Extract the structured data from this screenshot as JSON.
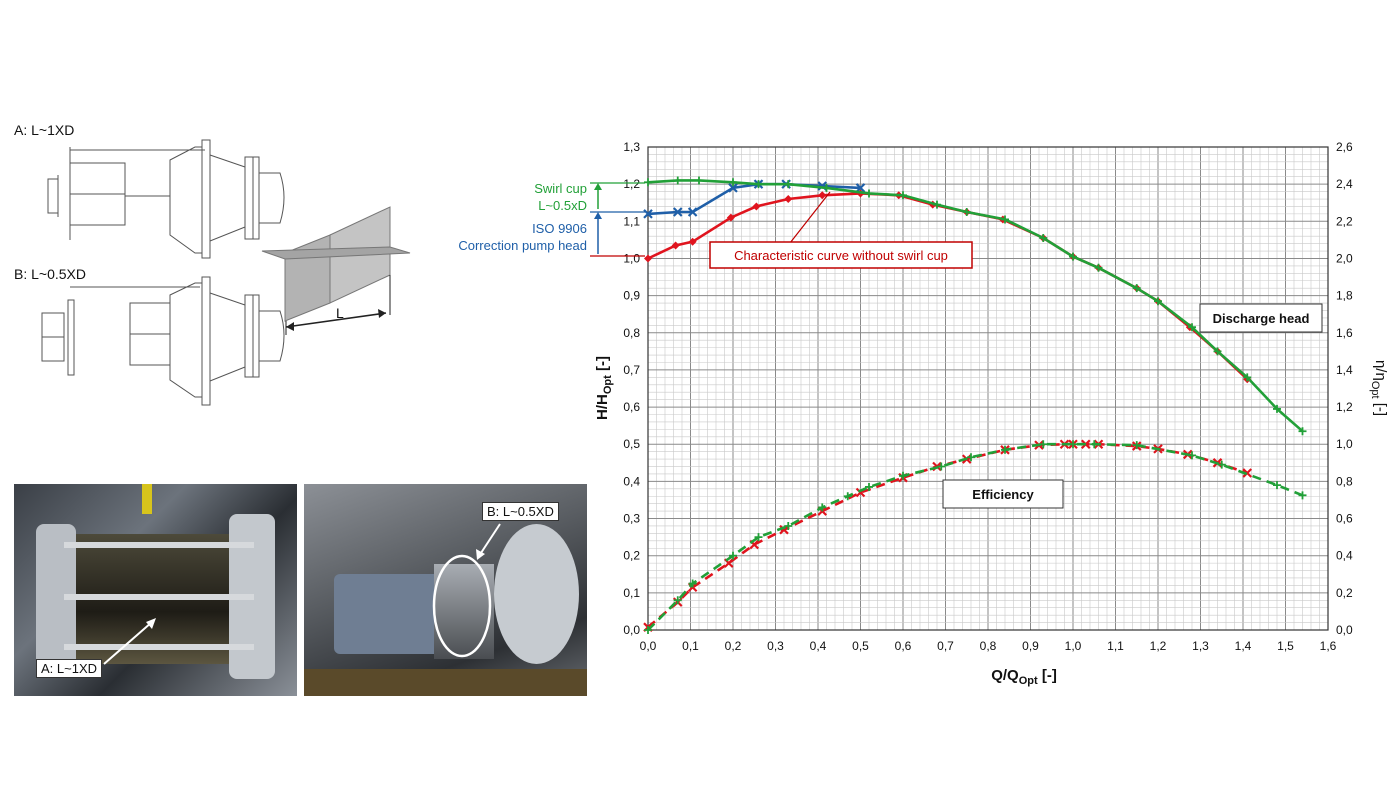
{
  "drawings": {
    "label_a": "A: L~1XD",
    "label_b": "B: L~0.5XD",
    "dim_label": "L"
  },
  "photos": {
    "left_tag": "A: L~1XD",
    "right_tag": "B: L~0.5XD"
  },
  "annotations": {
    "swirl_cup_line1": "Swirl cup",
    "swirl_cup_line2": "L~0.5xD",
    "iso_line1": "ISO 9906",
    "iso_line2": "Correction pump head",
    "without_swirl": "Characteristic curve without swirl cup",
    "discharge_head": "Discharge head",
    "efficiency": "Efficiency"
  },
  "colors": {
    "red": "#e0141e",
    "blue": "#1f5fa8",
    "green": "#22a038",
    "dark_red": "#c00000"
  },
  "chart_data": {
    "type": "line",
    "xlabel": "Q/Q",
    "xlabel_sub": "Opt",
    "xlabel_suffix": " [-]",
    "ylabel": "H/H",
    "ylabel_sub": "Opt",
    "ylabel_suffix": " [-]",
    "y2label": "η/η",
    "y2label_sub": "Opt",
    "y2label_suffix": " [-]",
    "xlim": [
      0,
      1.6
    ],
    "ylim": [
      0,
      1.3
    ],
    "y2lim": [
      0,
      2.6
    ],
    "x_ticks": [
      "0,0",
      "0,1",
      "0,2",
      "0,3",
      "0,4",
      "0,5",
      "0,6",
      "0,7",
      "0,8",
      "0,9",
      "1,0",
      "1,1",
      "1,2",
      "1,3",
      "1,4",
      "1,5",
      "1,6"
    ],
    "y_ticks": [
      "0,0",
      "0,1",
      "0,2",
      "0,3",
      "0,4",
      "0,5",
      "0,6",
      "0,7",
      "0,8",
      "0,9",
      "1,0",
      "1,1",
      "1,2",
      "1,3"
    ],
    "y2_ticks": [
      "0,0",
      "0,2",
      "0,4",
      "0,6",
      "0,8",
      "1,0",
      "1,2",
      "1,4",
      "1,6",
      "1,8",
      "2,0",
      "2,2",
      "2,4",
      "2,6"
    ],
    "grid": true,
    "series": [
      {
        "key": "head_no_swirl",
        "color": "#e0141e",
        "marker": "diamond",
        "x": [
          0.0,
          0.065,
          0.105,
          0.195,
          0.255,
          0.33,
          0.41,
          0.5,
          0.59,
          0.67,
          0.75,
          0.835,
          0.93,
          1.0,
          1.06,
          1.15,
          1.2,
          1.275,
          1.34,
          1.41
        ],
        "y": [
          1.0,
          1.035,
          1.045,
          1.11,
          1.14,
          1.16,
          1.17,
          1.175,
          1.17,
          1.145,
          1.125,
          1.105,
          1.055,
          1.005,
          0.975,
          0.92,
          0.885,
          0.815,
          0.75,
          0.675
        ]
      },
      {
        "key": "head_iso",
        "color": "#1f5fa8",
        "marker": "x",
        "x": [
          0.0,
          0.07,
          0.105,
          0.2,
          0.26,
          0.325,
          0.41,
          0.5
        ],
        "y": [
          1.12,
          1.125,
          1.125,
          1.19,
          1.2,
          1.2,
          1.195,
          1.19
        ]
      },
      {
        "key": "head_swirl",
        "color": "#22a038",
        "marker": "plus",
        "x": [
          0.0,
          0.07,
          0.12,
          0.2,
          0.26,
          0.33,
          0.42,
          0.52,
          0.6,
          0.68,
          0.75,
          0.84,
          0.93,
          1.0,
          1.06,
          1.15,
          1.2,
          1.28,
          1.34,
          1.41,
          1.48,
          1.54
        ],
        "y": [
          1.205,
          1.21,
          1.21,
          1.205,
          1.2,
          1.2,
          1.19,
          1.175,
          1.17,
          1.145,
          1.125,
          1.105,
          1.055,
          1.005,
          0.975,
          0.92,
          0.885,
          0.815,
          0.75,
          0.68,
          0.595,
          0.535
        ]
      },
      {
        "key": "eff_no_swirl",
        "axis": "y2",
        "color": "#e0141e",
        "marker": "x",
        "dashed": true,
        "x": [
          0.0,
          0.07,
          0.105,
          0.19,
          0.25,
          0.32,
          0.41,
          0.5,
          0.6,
          0.68,
          0.75,
          0.84,
          0.92,
          0.98,
          1.0,
          1.03,
          1.06,
          1.15,
          1.2,
          1.27,
          1.34,
          1.41
        ],
        "y": [
          0.015,
          0.15,
          0.23,
          0.36,
          0.46,
          0.54,
          0.64,
          0.74,
          0.82,
          0.88,
          0.92,
          0.97,
          0.995,
          1.0,
          1.0,
          1.0,
          1.0,
          0.99,
          0.975,
          0.945,
          0.9,
          0.845
        ]
      },
      {
        "key": "eff_swirl",
        "axis": "y2",
        "color": "#22a038",
        "marker": "plus",
        "dashed": true,
        "x": [
          0.0,
          0.07,
          0.105,
          0.2,
          0.26,
          0.33,
          0.41,
          0.47,
          0.52,
          0.6,
          0.69,
          0.76,
          0.84,
          0.93,
          1.0,
          1.05,
          1.15,
          1.28,
          1.35,
          1.48,
          1.54
        ],
        "y": [
          0.0,
          0.16,
          0.25,
          0.4,
          0.5,
          0.56,
          0.66,
          0.72,
          0.77,
          0.83,
          0.88,
          0.93,
          0.97,
          1.0,
          1.0,
          1.0,
          0.995,
          0.94,
          0.89,
          0.78,
          0.725
        ]
      }
    ]
  }
}
